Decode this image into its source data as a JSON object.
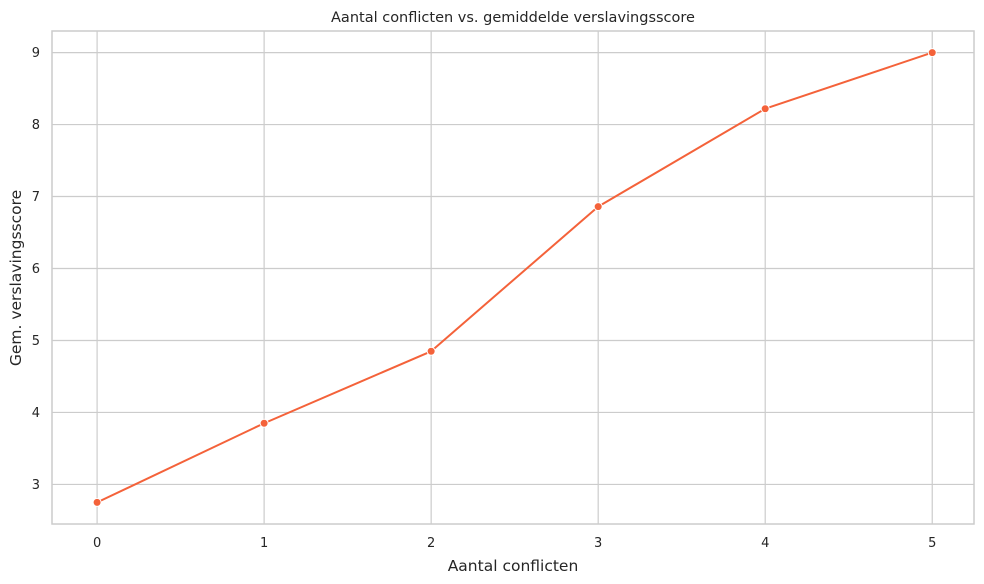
{
  "chart_data": {
    "type": "line",
    "title": "Aantal conflicten vs. gemiddelde verslavingsscore",
    "xlabel": "Aantal conflicten",
    "ylabel": "Gem. verslavingsscore",
    "x": [
      0,
      1,
      2,
      3,
      4,
      5
    ],
    "series": [
      {
        "values": [
          2.75,
          3.85,
          4.85,
          6.86,
          8.22,
          9.0
        ]
      }
    ],
    "x_ticks": [
      "0",
      "1",
      "2",
      "3",
      "4",
      "5"
    ],
    "y_ticks": [
      "3",
      "4",
      "5",
      "6",
      "7",
      "8",
      "9"
    ],
    "xlim": [
      -0.27,
      5.25
    ],
    "ylim": [
      2.45,
      9.3
    ],
    "grid": true,
    "line_color": "#F4623A",
    "marker": "circle"
  }
}
